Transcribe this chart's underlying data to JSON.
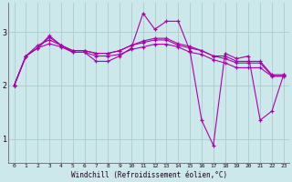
{
  "background_color": "#cce8ea",
  "line_color": "#aa00aa",
  "grid_color": "#aacccc",
  "x_ticks": [
    0,
    1,
    2,
    3,
    4,
    5,
    6,
    7,
    8,
    9,
    10,
    11,
    12,
    13,
    14,
    15,
    16,
    17,
    18,
    19,
    20,
    21,
    22,
    23
  ],
  "y_ticks": [
    1,
    2,
    3
  ],
  "xlim": [
    -0.5,
    23.5
  ],
  "ylim": [
    0.55,
    3.55
  ],
  "xlabel": "Windchill (Refroidissement éolien,°C)",
  "series": [
    {
      "x": [
        0,
        1,
        2,
        3,
        4,
        5,
        6,
        7,
        8,
        9,
        10,
        11,
        12,
        13,
        14,
        15,
        16,
        17,
        18,
        19,
        20,
        21,
        22,
        23
      ],
      "y": [
        2.0,
        2.55,
        2.7,
        2.9,
        2.75,
        2.65,
        2.65,
        2.6,
        2.6,
        2.65,
        2.75,
        2.8,
        2.85,
        2.85,
        2.75,
        2.7,
        2.65,
        2.55,
        2.55,
        2.45,
        2.45,
        2.45,
        2.2,
        2.2
      ]
    },
    {
      "x": [
        0,
        1,
        2,
        3,
        4,
        5,
        6,
        7,
        8,
        9,
        10,
        11,
        12,
        13,
        14,
        15,
        16,
        17,
        18,
        19,
        20,
        21,
        22,
        23
      ],
      "y": [
        2.0,
        2.55,
        2.75,
        2.85,
        2.75,
        2.65,
        2.65,
        2.6,
        2.6,
        2.65,
        2.75,
        2.83,
        2.88,
        2.88,
        2.78,
        2.73,
        2.65,
        2.55,
        2.5,
        2.42,
        2.42,
        2.42,
        2.18,
        2.18
      ]
    },
    {
      "x": [
        0,
        1,
        2,
        3,
        4,
        5,
        6,
        7,
        8,
        9,
        10,
        11,
        12,
        13,
        14,
        15,
        16,
        17,
        18,
        19,
        20,
        21,
        22,
        23
      ],
      "y": [
        2.0,
        2.55,
        2.7,
        2.78,
        2.72,
        2.62,
        2.62,
        2.55,
        2.55,
        2.58,
        2.67,
        2.72,
        2.77,
        2.77,
        2.72,
        2.62,
        2.58,
        2.48,
        2.42,
        2.33,
        2.33,
        2.33,
        2.17,
        2.17
      ]
    },
    {
      "x": [
        0,
        1,
        2,
        3,
        4,
        5,
        6,
        7,
        8,
        9,
        10,
        11,
        12,
        13,
        14,
        15
      ],
      "y": [
        2.0,
        2.55,
        2.7,
        2.93,
        2.75,
        2.62,
        2.62,
        2.45,
        2.45,
        2.55,
        2.7,
        3.35,
        3.05,
        3.2,
        3.2,
        2.65
      ]
    },
    {
      "x": [
        15,
        16,
        17,
        18,
        19,
        20,
        21,
        22,
        23
      ],
      "y": [
        2.65,
        1.35,
        0.88,
        2.6,
        2.5,
        2.55,
        1.35,
        1.52,
        2.2
      ]
    }
  ]
}
